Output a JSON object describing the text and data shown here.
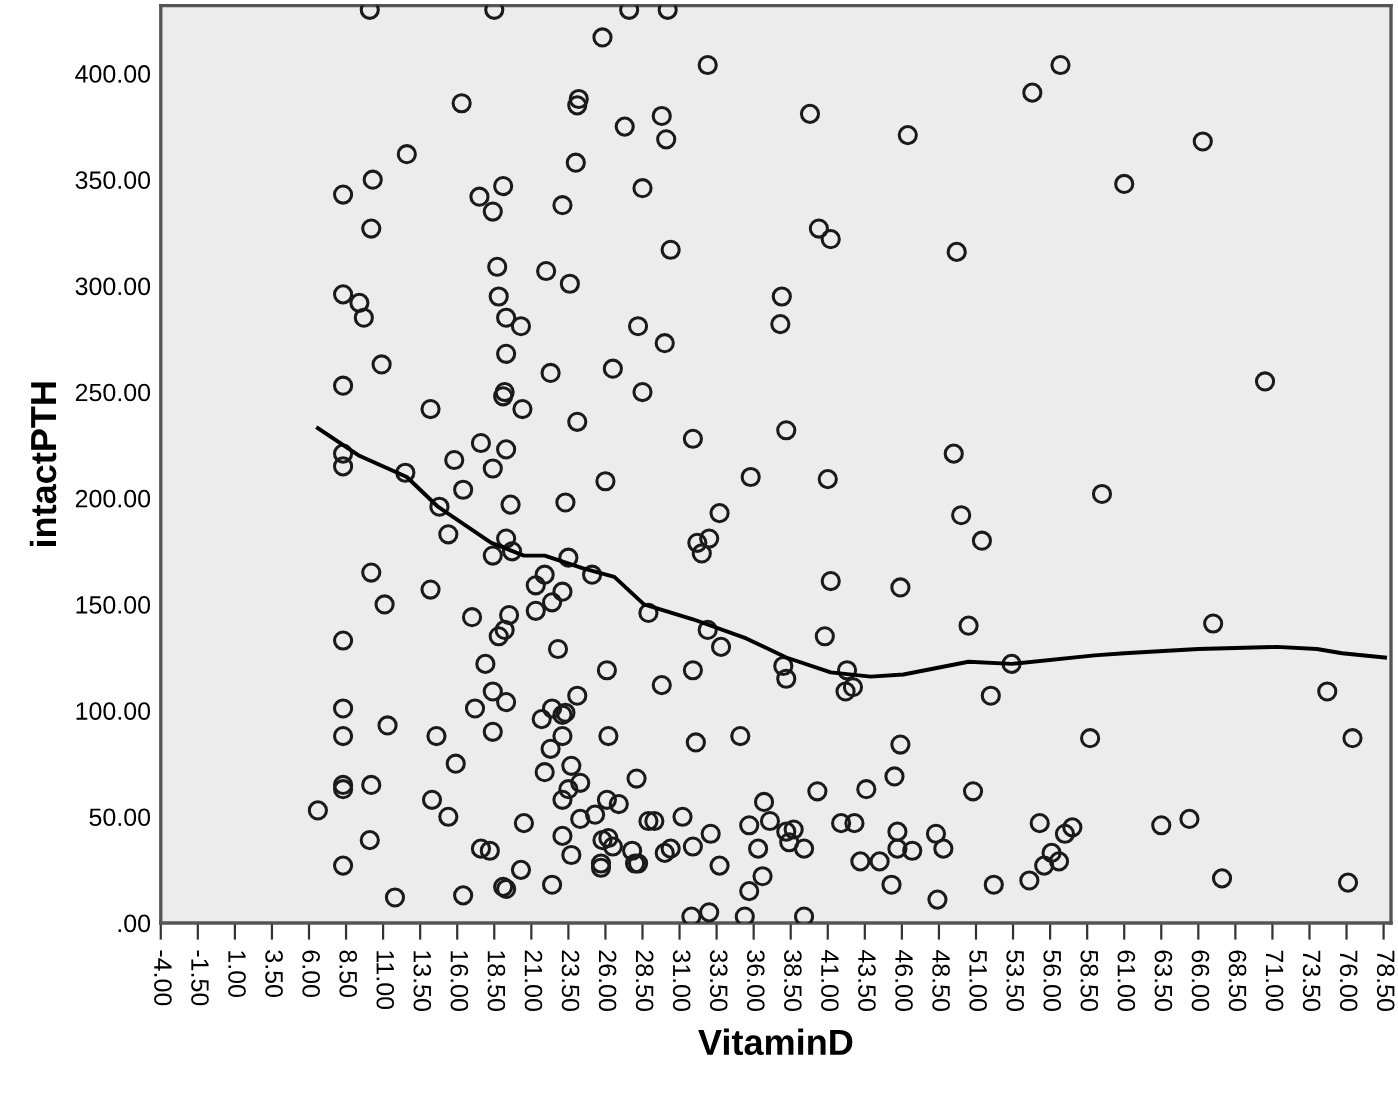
{
  "chart_data": {
    "type": "scatter",
    "xlabel": "VitaminD",
    "ylabel": "intactPTH",
    "xlim": [
      -4,
      79
    ],
    "ylim": [
      0,
      432
    ],
    "xticks": [
      {
        "value": -4,
        "label": "-4.00"
      },
      {
        "value": -1.5,
        "label": "-1.50"
      },
      {
        "value": 1,
        "label": "1.00"
      },
      {
        "value": 3.5,
        "label": "3.50"
      },
      {
        "value": 6,
        "label": "6.00"
      },
      {
        "value": 8.5,
        "label": "8.50"
      },
      {
        "value": 11,
        "label": "11.00"
      },
      {
        "value": 13.5,
        "label": "13.50"
      },
      {
        "value": 16,
        "label": "16.00"
      },
      {
        "value": 18.5,
        "label": "18.50"
      },
      {
        "value": 21,
        "label": "21.00"
      },
      {
        "value": 23.5,
        "label": "23.50"
      },
      {
        "value": 26,
        "label": "26.00"
      },
      {
        "value": 28.5,
        "label": "28.50"
      },
      {
        "value": 31,
        "label": "31.00"
      },
      {
        "value": 33.5,
        "label": "33.50"
      },
      {
        "value": 36,
        "label": "36.00"
      },
      {
        "value": 38.5,
        "label": "38.50"
      },
      {
        "value": 41,
        "label": "41.00"
      },
      {
        "value": 43.5,
        "label": "43.50"
      },
      {
        "value": 46,
        "label": "46.00"
      },
      {
        "value": 48.5,
        "label": "48.50"
      },
      {
        "value": 51,
        "label": "51.00"
      },
      {
        "value": 53.5,
        "label": "53.50"
      },
      {
        "value": 56,
        "label": "56.00"
      },
      {
        "value": 58.5,
        "label": "58.50"
      },
      {
        "value": 61,
        "label": "61.00"
      },
      {
        "value": 63.5,
        "label": "63.50"
      },
      {
        "value": 66,
        "label": "66.00"
      },
      {
        "value": 68.5,
        "label": "68.50"
      },
      {
        "value": 71,
        "label": "71.00"
      },
      {
        "value": 73.5,
        "label": "73.50"
      },
      {
        "value": 76,
        "label": "76.00"
      },
      {
        "value": 78.5,
        "label": "78.50"
      }
    ],
    "yticks": [
      {
        "value": 0,
        "label": ".00"
      },
      {
        "value": 50,
        "label": "50.00"
      },
      {
        "value": 100,
        "label": "100.00"
      },
      {
        "value": 150,
        "label": "150.00"
      },
      {
        "value": 200,
        "label": "200.00"
      },
      {
        "value": 250,
        "label": "250.00"
      },
      {
        "value": 300,
        "label": "300.00"
      },
      {
        "value": 350,
        "label": "350.00"
      },
      {
        "value": 400,
        "label": "400.00"
      }
    ],
    "grid": false,
    "legend": false,
    "series": [
      {
        "color": "#1a1a1a",
        "marker": "circle",
        "x": [
          10.1,
          18.5,
          27.6,
          30.2,
          25.8,
          16.3,
          24.2,
          24.1,
          27.3,
          12.6,
          10.3,
          8.3,
          19.1,
          17.5,
          18.4,
          24.0,
          23.1,
          28.5,
          10.2,
          18.7,
          22.0,
          23.6,
          8.3,
          9.4,
          9.7,
          18.8,
          19.3,
          20.3,
          28.2,
          19.3,
          10.9,
          8.3,
          22.3,
          26.5,
          19.2,
          19.1,
          20.4,
          28.5,
          14.2,
          24.1,
          8.3,
          8.3,
          12.5,
          17.6,
          19.3,
          15.8,
          18.4,
          26.0,
          16.4,
          14.8,
          19.6,
          23.3,
          15.4,
          19.3,
          18.4,
          19.7,
          23.5,
          25.1,
          10.2,
          21.9,
          21.3,
          14.2,
          23.1,
          22.4,
          11.1,
          21.3,
          17.0,
          19.5,
          19.2,
          18.8,
          28.9,
          8.3,
          22.8,
          17.9,
          26.1,
          18.4,
          17.2,
          19.3,
          24.1,
          8.3,
          8.3,
          11.3,
          14.6,
          18.4,
          22.4,
          23.1,
          21.7,
          23.3,
          23.1,
          26.2,
          22.3,
          15.9,
          23.7,
          21.9,
          24.3,
          23.5,
          8.3,
          8.3,
          10.2,
          28.1,
          23.1,
          26.1,
          26.9,
          14.3,
          6.6,
          25.3,
          24.3,
          15.4,
          20.5,
          28.9,
          10.1,
          23.1,
          17.6,
          18.2,
          25.8,
          26.2,
          26.5,
          23.7,
          27.8,
          25.7,
          25.7,
          28.0,
          28.2,
          8.3,
          20.3,
          19.1,
          19.3,
          22.4,
          11.8,
          16.4,
          32.9,
          29.8,
          30.1,
          39.8,
          46.4,
          40.4,
          41.2,
          30.4,
          49.7,
          37.9,
          37.8,
          30.0,
          31.9,
          38.2,
          49.5,
          35.8,
          41.0,
          33.7,
          32.2,
          32.5,
          33.0,
          50.0,
          51.4,
          41.2,
          45.9,
          32.9,
          33.8,
          50.5,
          40.8,
          38.0,
          38.2,
          31.9,
          42.3,
          42.2,
          42.7,
          53.4,
          29.8,
          52.0,
          35.1,
          32.1,
          45.9,
          45.5,
          40.3,
          43.6,
          50.8,
          36.7,
          29.3,
          31.2,
          37.1,
          35.7,
          41.9,
          42.8,
          33.1,
          38.7,
          38.2,
          38.4,
          31.9,
          36.3,
          39.4,
          45.7,
          48.3,
          45.7,
          46.7,
          48.8,
          30.0,
          30.4,
          33.7,
          43.2,
          44.5,
          36.6,
          35.7,
          45.3,
          52.2,
          48.4,
          31.8,
          33.0,
          35.4,
          39.4,
          56.7,
          54.8,
          66.3,
          61.0,
          70.5,
          59.5,
          67.0,
          74.7,
          58.7,
          76.4,
          55.3,
          57.5,
          57.0,
          63.5,
          65.4,
          56.1,
          55.6,
          56.6,
          54.6,
          67.6,
          76.1
        ],
        "values": [
          430,
          430,
          430,
          430,
          417,
          386,
          388,
          385,
          375,
          362,
          350,
          343,
          347,
          342,
          335,
          358,
          338,
          346,
          327,
          309,
          307,
          301,
          296,
          292,
          285,
          295,
          285,
          281,
          281,
          268,
          263,
          253,
          259,
          261,
          250,
          248,
          242,
          250,
          242,
          236,
          221,
          215,
          212,
          226,
          223,
          218,
          214,
          208,
          204,
          196,
          197,
          198,
          183,
          181,
          173,
          175,
          172,
          164,
          165,
          164,
          159,
          157,
          156,
          151,
          150,
          147,
          144,
          145,
          138,
          135,
          146,
          133,
          129,
          122,
          119,
          109,
          101,
          104,
          107,
          101,
          88,
          93,
          88,
          90,
          101,
          98,
          96,
          99,
          88,
          88,
          82,
          75,
          74,
          71,
          66,
          63,
          65,
          63,
          65,
          68,
          58,
          58,
          56,
          58,
          53,
          51,
          49,
          50,
          47,
          48,
          39,
          41,
          35,
          34,
          39,
          40,
          36,
          32,
          34,
          28,
          26,
          28,
          28,
          27,
          25,
          17,
          16,
          18,
          12,
          13,
          404,
          380,
          369,
          381,
          371,
          327,
          322,
          317,
          316,
          295,
          282,
          273,
          228,
          232,
          221,
          210,
          209,
          193,
          179,
          174,
          181,
          192,
          180,
          161,
          158,
          138,
          130,
          140,
          135,
          121,
          115,
          119,
          119,
          109,
          111,
          122,
          112,
          107,
          88,
          85,
          84,
          69,
          62,
          63,
          62,
          57,
          48,
          50,
          48,
          46,
          47,
          47,
          42,
          44,
          43,
          38,
          36,
          35,
          35,
          43,
          42,
          35,
          34,
          35,
          33,
          35,
          27,
          29,
          29,
          22,
          15,
          18,
          18,
          11,
          3,
          5,
          3,
          3,
          404,
          391,
          368,
          348,
          255,
          202,
          141,
          109,
          87,
          87,
          47,
          45,
          42,
          46,
          49,
          33,
          27,
          29,
          20,
          21,
          19
        ]
      },
      {
        "type": "line",
        "color": "#000000",
        "marker": "none",
        "line_style": "solid",
        "x": [
          6.6,
          9.4,
          12.6,
          14.7,
          18.3,
          20.5,
          21.9,
          24.5,
          26.6,
          28.6,
          31.9,
          35.5,
          38.2,
          41.2,
          43.9,
          46.1,
          50.5,
          53.4,
          59.0,
          61.0,
          66.0,
          71.3,
          74.0,
          75.7,
          78.6
        ],
        "values": [
          233,
          220,
          210,
          196,
          179,
          173,
          173,
          167,
          163,
          150,
          143,
          134,
          125,
          118,
          116,
          117,
          123,
          122,
          126,
          127,
          129,
          130,
          129,
          127,
          125
        ]
      }
    ]
  }
}
